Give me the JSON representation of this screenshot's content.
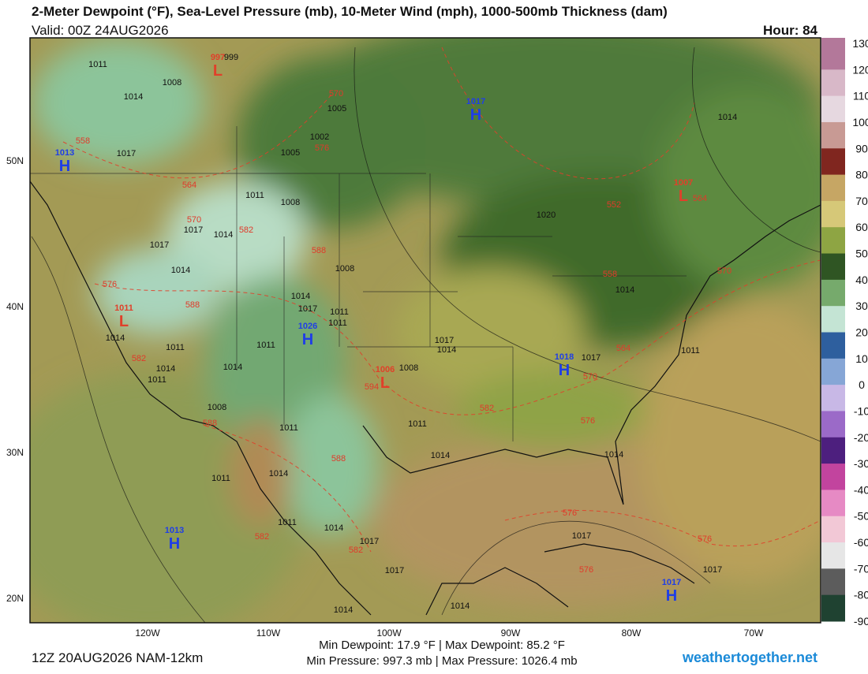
{
  "header": {
    "title": "2-Meter Dewpoint (°F), Sea-Level Pressure (mb), 10-Meter Wind (mph), 1000-500mb Thickness (dam)",
    "valid": "Valid: 00Z 24AUG2026",
    "hour": "Hour: 84"
  },
  "colorbar": {
    "labels": [
      130,
      120,
      110,
      100,
      90,
      80,
      70,
      60,
      50,
      40,
      30,
      20,
      10,
      0,
      -10,
      -20,
      -30,
      -40,
      -50,
      -60,
      -70,
      -80,
      -90
    ]
  },
  "axes": {
    "lat": [
      "50N",
      "40N",
      "30N",
      "20N"
    ],
    "lon": [
      "120W",
      "110W",
      "100W",
      "90W",
      "80W",
      "70W"
    ]
  },
  "centers": [
    {
      "type": "L",
      "value": "997"
    },
    {
      "type": "H",
      "value": "1017"
    },
    {
      "type": "H",
      "value": "1013"
    },
    {
      "type": "L",
      "value": "1007"
    },
    {
      "type": "L",
      "value": "1011"
    },
    {
      "type": "H",
      "value": "1026"
    },
    {
      "type": "L",
      "value": "1006"
    },
    {
      "type": "H",
      "value": "1018"
    },
    {
      "type": "H",
      "value": "1013"
    },
    {
      "type": "H",
      "value": "1017"
    }
  ],
  "isobar_labels": [
    "999",
    "1011",
    "1008",
    "1014",
    "1005",
    "1002",
    "1005",
    "1017",
    "1011",
    "1008",
    "1017",
    "1014",
    "1017",
    "1014",
    "1008",
    "1014",
    "1017",
    "1011",
    "1011",
    "1014",
    "1011",
    "1011",
    "1014",
    "1014",
    "1011",
    "1008",
    "1017",
    "1014",
    "1017",
    "1011",
    "1014",
    "1020",
    "1014",
    "1008",
    "1011",
    "1011",
    "1014",
    "1014",
    "1014",
    "1011",
    "1011",
    "1014",
    "1017",
    "1017",
    "1017",
    "1017",
    "1014",
    "1014"
  ],
  "thickness_labels": [
    "570",
    "576",
    "558",
    "564",
    "570",
    "582",
    "588",
    "576",
    "588",
    "582",
    "594",
    "582",
    "576",
    "570",
    "564",
    "558",
    "552",
    "564",
    "570",
    "588",
    "588",
    "576",
    "576",
    "576",
    "582",
    "582"
  ],
  "footer": {
    "run": "12Z 20AUG2026 NAM-12km",
    "dewpoint": "Min Dewpoint:  17.9 °F | Max Dewpoint:  85.2 °F",
    "pressure": "Min Pressure: 997.3 mb | Max Pressure: 1026.4 mb",
    "site": "weathertogether.net"
  }
}
